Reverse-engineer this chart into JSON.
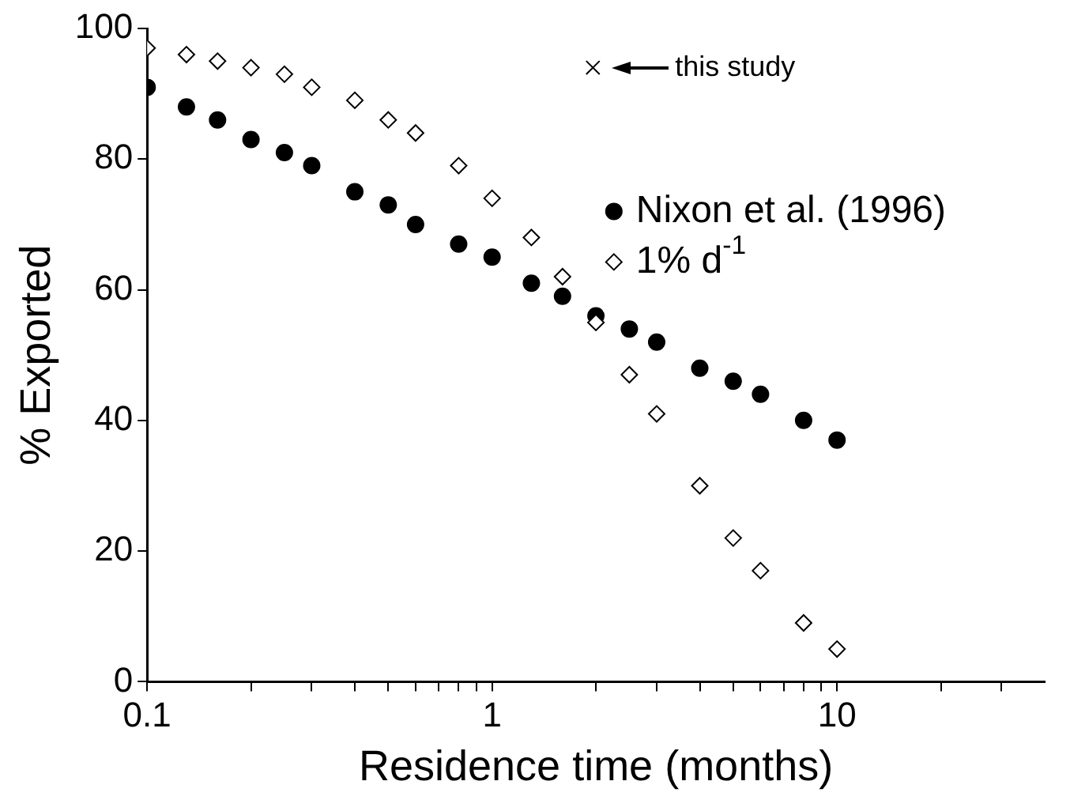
{
  "chart_data": {
    "type": "scatter",
    "xlabel": "Residence time (months)",
    "ylabel": "% Exported",
    "log": "x",
    "xlim": [
      0.1,
      40
    ],
    "ylim": [
      0,
      100
    ],
    "xticks": [
      0.1,
      {
        "value": 0.2,
        "label": null
      },
      {
        "value": 0.3,
        "label": null
      },
      {
        "value": 0.4,
        "label": null
      },
      {
        "value": 0.5,
        "label": null
      },
      {
        "value": 0.6,
        "label": null
      },
      {
        "value": 0.7,
        "label": null
      },
      {
        "value": 0.8,
        "label": null
      },
      {
        "value": 0.9,
        "label": null
      },
      1,
      {
        "value": 2,
        "label": null
      },
      {
        "value": 3,
        "label": null
      },
      {
        "value": 4,
        "label": null
      },
      {
        "value": 5,
        "label": null
      },
      {
        "value": 6,
        "label": null
      },
      {
        "value": 7,
        "label": null
      },
      {
        "value": 8,
        "label": null
      },
      {
        "value": 9,
        "label": null
      },
      10,
      {
        "value": 20,
        "label": null
      },
      {
        "value": 30,
        "label": null
      }
    ],
    "yticks": [
      0,
      20,
      40,
      60,
      80,
      100
    ],
    "grid": false,
    "legend": "right",
    "series": [
      {
        "name": "Nixon et al. (1996)",
        "color": "#000000",
        "marker": "circle",
        "x": [
          0.1,
          0.13,
          0.16,
          0.2,
          0.25,
          0.3,
          0.4,
          0.5,
          0.6,
          0.8,
          1,
          1.3,
          1.6,
          2,
          2.5,
          3,
          4,
          5,
          6,
          8,
          10
        ],
        "values": [
          91,
          88,
          86,
          83,
          81,
          79,
          75,
          73,
          70,
          67,
          65,
          61,
          59,
          56,
          54,
          52,
          48,
          46,
          44,
          40,
          37
        ]
      },
      {
        "name": "1% d$^{-1}$",
        "color": "#000000",
        "marker": "diamond",
        "x": [
          0.1,
          0.13,
          0.16,
          0.2,
          0.25,
          0.3,
          0.4,
          0.5,
          0.6,
          0.8,
          1,
          1.3,
          1.6,
          2,
          2.5,
          3,
          4,
          5,
          6,
          8,
          10
        ],
        "values": [
          97,
          96,
          95,
          94,
          93,
          91,
          89,
          86,
          84,
          79,
          74,
          68,
          62,
          55,
          47,
          41,
          30,
          22,
          17,
          9,
          5
        ]
      },
      {
        "color": "#000000",
        "marker": "cross",
        "x": [
          1.96
        ],
        "values": [
          94
        ]
      }
    ],
    "annotations": [
      {
        "text": "this study",
        "x": 1.96,
        "y": 94
      }
    ]
  }
}
